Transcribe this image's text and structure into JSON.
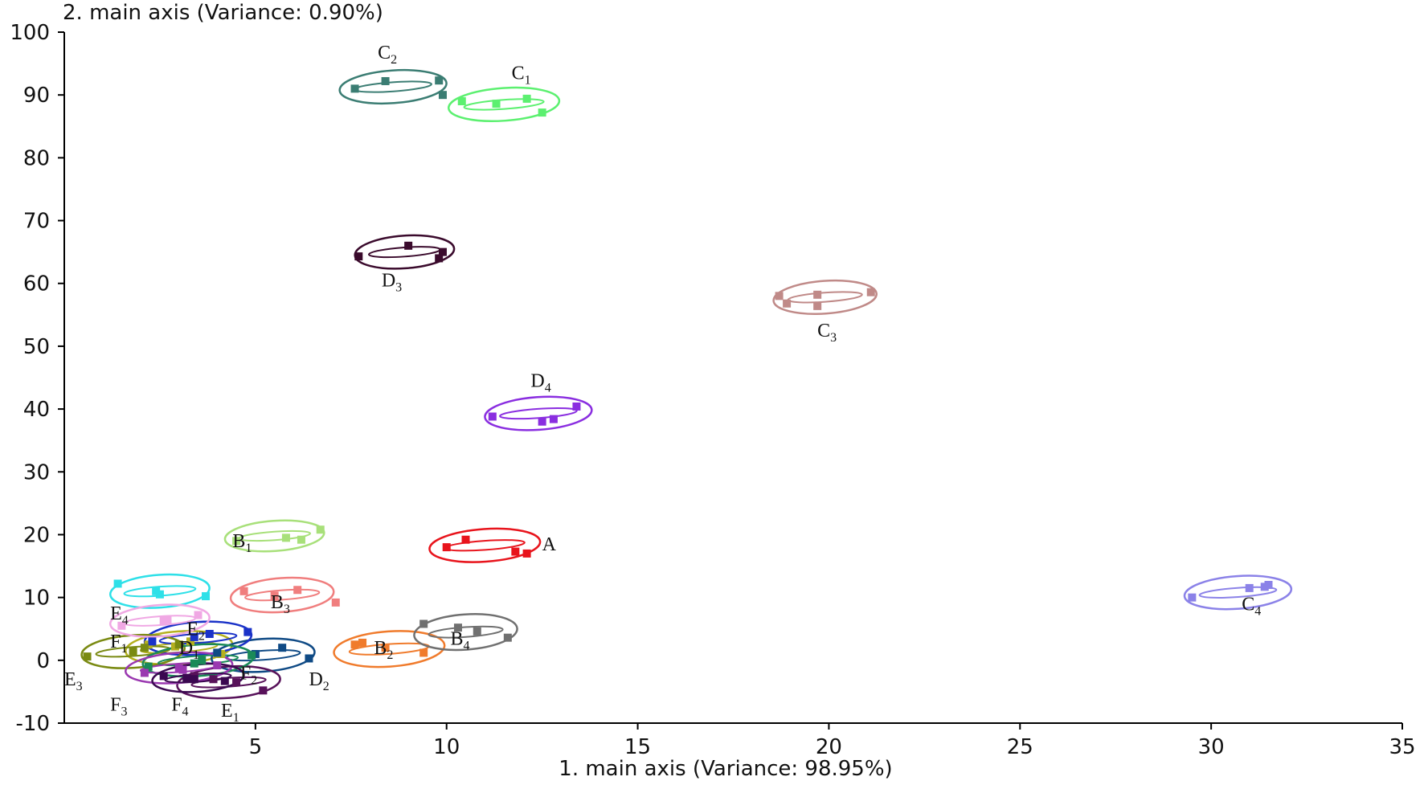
{
  "chart_data": {
    "type": "scatter",
    "xlabel": "1. main axis (Variance: 98.95%)",
    "ylabel": "2. main axis (Variance: 0.90%)",
    "xlim": [
      0,
      35
    ],
    "ylim": [
      -10,
      100
    ],
    "xticks": [
      5,
      10,
      15,
      20,
      25,
      30,
      35
    ],
    "yticks": [
      -10,
      0,
      10,
      20,
      30,
      40,
      50,
      60,
      70,
      80,
      90,
      100
    ],
    "grid": false,
    "legend": "none",
    "groups": [
      {
        "name": "A",
        "label": "A",
        "sub": "",
        "color": "#e8141c",
        "points": [
          [
            10.0,
            18.0
          ],
          [
            10.5,
            19.2
          ],
          [
            12.1,
            17.0
          ],
          [
            11.8,
            17.3
          ]
        ]
      },
      {
        "name": "B1",
        "label": "B",
        "sub": "1",
        "color": "#a8e07a",
        "points": [
          [
            4.5,
            19.0
          ],
          [
            5.8,
            19.5
          ],
          [
            6.7,
            20.8
          ],
          [
            6.2,
            19.2
          ]
        ]
      },
      {
        "name": "B2",
        "label": "B",
        "sub": "2",
        "color": "#f07b2c",
        "points": [
          [
            7.6,
            2.5
          ],
          [
            7.8,
            2.8
          ],
          [
            9.4,
            1.2
          ],
          [
            8.4,
            2.0
          ]
        ]
      },
      {
        "name": "B3",
        "label": "B",
        "sub": "3",
        "color": "#f07e7e",
        "points": [
          [
            4.7,
            11.0
          ],
          [
            6.1,
            11.2
          ],
          [
            7.1,
            9.2
          ],
          [
            5.5,
            10.3
          ]
        ]
      },
      {
        "name": "B4",
        "label": "B",
        "sub": "4",
        "color": "#707070",
        "points": [
          [
            9.4,
            5.8
          ],
          [
            10.3,
            5.2
          ],
          [
            11.6,
            3.6
          ],
          [
            10.8,
            4.6
          ]
        ]
      },
      {
        "name": "C1",
        "label": "C",
        "sub": "1",
        "color": "#5cf070",
        "points": [
          [
            10.4,
            89.0
          ],
          [
            12.1,
            89.4
          ],
          [
            12.5,
            87.2
          ],
          [
            11.3,
            88.6
          ]
        ]
      },
      {
        "name": "C2",
        "label": "C",
        "sub": "2",
        "color": "#3b7d73",
        "points": [
          [
            7.6,
            91.0
          ],
          [
            8.4,
            92.2
          ],
          [
            9.8,
            92.3
          ],
          [
            9.9,
            90.0
          ]
        ]
      },
      {
        "name": "C3",
        "label": "C",
        "sub": "3",
        "color": "#c08a88",
        "points": [
          [
            18.7,
            58.0
          ],
          [
            18.9,
            56.8
          ],
          [
            19.7,
            58.2
          ],
          [
            21.1,
            58.6
          ],
          [
            19.7,
            56.4
          ]
        ]
      },
      {
        "name": "C4",
        "label": "C",
        "sub": "4",
        "color": "#8b82e8",
        "points": [
          [
            29.5,
            10.0
          ],
          [
            31.0,
            11.5
          ],
          [
            31.4,
            11.7
          ],
          [
            31.5,
            12.0
          ]
        ]
      },
      {
        "name": "D1",
        "label": "D",
        "sub": "1",
        "color": "#b4b01e",
        "points": [
          [
            2.2,
            2.5
          ],
          [
            3.3,
            3.0
          ],
          [
            4.1,
            1.0
          ],
          [
            2.9,
            2.2
          ]
        ]
      },
      {
        "name": "D2",
        "label": "D",
        "sub": "2",
        "color": "#0f4a85",
        "points": [
          [
            4.0,
            1.2
          ],
          [
            5.7,
            2.0
          ],
          [
            6.4,
            0.3
          ],
          [
            5.0,
            1.0
          ]
        ]
      },
      {
        "name": "D3",
        "label": "D",
        "sub": "3",
        "color": "#3a0a2c",
        "points": [
          [
            7.7,
            64.3
          ],
          [
            9.0,
            66.0
          ],
          [
            9.9,
            65.0
          ],
          [
            9.8,
            64.0
          ]
        ]
      },
      {
        "name": "D4",
        "label": "D",
        "sub": "4",
        "color": "#8a2ee0",
        "points": [
          [
            11.2,
            38.8
          ],
          [
            12.5,
            38.0
          ],
          [
            12.8,
            38.4
          ],
          [
            13.4,
            40.4
          ]
        ]
      },
      {
        "name": "E1",
        "label": "E",
        "sub": "1",
        "color": "#58125a",
        "points": [
          [
            3.4,
            -2.5
          ],
          [
            4.5,
            -3.5
          ],
          [
            5.2,
            -4.8
          ],
          [
            3.9,
            -3.0
          ]
        ]
      },
      {
        "name": "E2",
        "label": "E",
        "sub": "2",
        "color": "#1a32c8",
        "points": [
          [
            2.3,
            3.0
          ],
          [
            3.8,
            4.2
          ],
          [
            4.8,
            4.5
          ],
          [
            3.4,
            3.7
          ]
        ]
      },
      {
        "name": "E3",
        "label": "E",
        "sub": "3",
        "color": "#7a8a12",
        "points": [
          [
            0.6,
            0.6
          ],
          [
            2.1,
            2.0
          ],
          [
            3.0,
            2.5
          ],
          [
            1.8,
            1.4
          ]
        ]
      },
      {
        "name": "E4",
        "label": "E",
        "sub": "4",
        "color": "#2ee0e8",
        "points": [
          [
            1.4,
            12.2
          ],
          [
            2.5,
            10.5
          ],
          [
            3.7,
            10.2
          ],
          [
            2.4,
            11.0
          ]
        ]
      },
      {
        "name": "F1",
        "label": "F",
        "sub": "1",
        "color": "#f0a8e4",
        "points": [
          [
            1.5,
            5.5
          ],
          [
            2.7,
            6.5
          ],
          [
            3.5,
            7.2
          ],
          [
            2.6,
            6.3
          ]
        ]
      },
      {
        "name": "F2",
        "label": "F",
        "sub": "2",
        "color": "#1a8a58",
        "points": [
          [
            2.2,
            -1.0
          ],
          [
            3.4,
            -0.5
          ],
          [
            4.9,
            0.8
          ],
          [
            3.6,
            0.0
          ]
        ]
      },
      {
        "name": "F3",
        "label": "F",
        "sub": "3",
        "color": "#9a38b0",
        "points": [
          [
            2.1,
            -2.0
          ],
          [
            3.1,
            -1.5
          ],
          [
            4.0,
            -0.8
          ],
          [
            3.0,
            -1.3
          ]
        ]
      },
      {
        "name": "F4",
        "label": "F",
        "sub": "4",
        "color": "#3a0850",
        "points": [
          [
            2.6,
            -2.5
          ],
          [
            3.2,
            -2.8
          ],
          [
            4.2,
            -3.3
          ],
          [
            3.4,
            -3.0
          ]
        ]
      }
    ],
    "ellipses": [
      {
        "group": "A",
        "cx": 11.0,
        "cy": 18.3,
        "rx": 1.45,
        "ry": 2.6
      },
      {
        "group": "B1",
        "cx": 5.5,
        "cy": 19.8,
        "rx": 1.3,
        "ry": 2.4
      },
      {
        "group": "B2",
        "cx": 8.5,
        "cy": 1.8,
        "rx": 1.45,
        "ry": 2.8
      },
      {
        "group": "B3",
        "cx": 5.7,
        "cy": 10.4,
        "rx": 1.35,
        "ry": 2.7
      },
      {
        "group": "B4",
        "cx": 10.5,
        "cy": 4.5,
        "rx": 1.35,
        "ry": 2.8
      },
      {
        "group": "C1",
        "cx": 11.5,
        "cy": 88.5,
        "rx": 1.45,
        "ry": 2.6
      },
      {
        "group": "C2",
        "cx": 8.6,
        "cy": 91.3,
        "rx": 1.4,
        "ry": 2.6
      },
      {
        "group": "C3",
        "cx": 19.9,
        "cy": 57.8,
        "rx": 1.35,
        "ry": 2.6
      },
      {
        "group": "C4",
        "cx": 30.7,
        "cy": 10.8,
        "rx": 1.4,
        "ry": 2.6
      },
      {
        "group": "D1",
        "cx": 3.0,
        "cy": 2.0,
        "rx": 1.4,
        "ry": 2.6
      },
      {
        "group": "D2",
        "cx": 5.2,
        "cy": 0.8,
        "rx": 1.35,
        "ry": 2.6
      },
      {
        "group": "D3",
        "cx": 8.9,
        "cy": 65.0,
        "rx": 1.3,
        "ry": 2.6
      },
      {
        "group": "D4",
        "cx": 12.4,
        "cy": 39.3,
        "rx": 1.4,
        "ry": 2.6
      },
      {
        "group": "E1",
        "cx": 4.3,
        "cy": -3.5,
        "rx": 1.35,
        "ry": 2.5
      },
      {
        "group": "E2",
        "cx": 3.5,
        "cy": 3.5,
        "rx": 1.4,
        "ry": 2.6
      },
      {
        "group": "E3",
        "cx": 1.8,
        "cy": 1.4,
        "rx": 1.35,
        "ry": 2.6
      },
      {
        "group": "E4",
        "cx": 2.5,
        "cy": 11.0,
        "rx": 1.3,
        "ry": 2.6
      },
      {
        "group": "F1",
        "cx": 2.5,
        "cy": 6.3,
        "rx": 1.3,
        "ry": 2.5
      },
      {
        "group": "F2",
        "cx": 3.5,
        "cy": 0.0,
        "rx": 1.45,
        "ry": 2.5
      },
      {
        "group": "F3",
        "cx": 3.0,
        "cy": -1.2,
        "rx": 1.4,
        "ry": 2.4
      },
      {
        "group": "F4",
        "cx": 3.5,
        "cy": -2.8,
        "rx": 1.2,
        "ry": 2.2
      }
    ],
    "labels": [
      {
        "group": "A",
        "x": 12.5,
        "y": 17.5
      },
      {
        "group": "B1",
        "x": 4.4,
        "y": 18.0
      },
      {
        "group": "B2",
        "x": 8.1,
        "y": 1.0
      },
      {
        "group": "B3",
        "x": 5.4,
        "y": 8.3
      },
      {
        "group": "B4",
        "x": 10.1,
        "y": 2.5
      },
      {
        "group": "C1",
        "x": 11.7,
        "y": 92.5
      },
      {
        "group": "C2",
        "x": 8.2,
        "y": 95.8
      },
      {
        "group": "C3",
        "x": 19.7,
        "y": 51.5
      },
      {
        "group": "C4",
        "x": 30.8,
        "y": 8.0
      },
      {
        "group": "D1",
        "x": 3.0,
        "y": 1.0
      },
      {
        "group": "D2",
        "x": 6.4,
        "y": -4.0
      },
      {
        "group": "D3",
        "x": 8.3,
        "y": 59.5
      },
      {
        "group": "D4",
        "x": 12.2,
        "y": 43.5
      },
      {
        "group": "E1",
        "x": 4.1,
        "y": -9.0
      },
      {
        "group": "E2",
        "x": 3.2,
        "y": 4.0
      },
      {
        "group": "E3",
        "x": 0.0,
        "y": -4.0
      },
      {
        "group": "E4",
        "x": 1.2,
        "y": 6.5
      },
      {
        "group": "F1",
        "x": 1.2,
        "y": 2.0
      },
      {
        "group": "F2",
        "x": 4.6,
        "y": -3.0
      },
      {
        "group": "F3",
        "x": 1.2,
        "y": -8.0
      },
      {
        "group": "F4",
        "x": 2.8,
        "y": -8.0
      }
    ]
  }
}
